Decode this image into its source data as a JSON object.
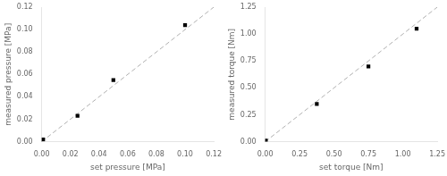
{
  "chart_data": [
    {
      "type": "scatter",
      "xlabel": "set pressure [MPa]",
      "ylabel": "measured pressure [MPa]",
      "xlim": [
        0.0,
        0.12
      ],
      "ylim": [
        0.0,
        0.12
      ],
      "xticks": [
        {
          "value": 0.0,
          "label": "0.00"
        },
        0.02,
        0.04,
        0.06,
        0.08,
        {
          "value": 0.1,
          "label": "0.10"
        },
        0.12
      ],
      "yticks": [
        {
          "value": 0.0,
          "label": "0.00"
        },
        0.02,
        0.04,
        0.06,
        0.08,
        {
          "value": 0.1,
          "label": "0.10"
        },
        0.12
      ],
      "grid": false,
      "series": [
        {
          "type": "line",
          "color": "#b0b0b0",
          "line_style": "dashed",
          "x": [
            0.0,
            0.12
          ],
          "values": [
            0.0,
            0.12
          ]
        },
        {
          "type": "scatter",
          "color": "#000000",
          "marker": "square",
          "x": [
            0.001,
            0.025,
            0.05,
            0.1
          ],
          "values": [
            0.002,
            0.023,
            0.055,
            0.104
          ]
        }
      ]
    },
    {
      "type": "scatter",
      "xlabel": "set torque [Nm]",
      "ylabel": "measured torque [Nm]",
      "xlim": [
        0.0,
        1.25
      ],
      "ylim": [
        0.0,
        1.25
      ],
      "xticks": [
        {
          "value": 0.0,
          "label": "0.00"
        },
        0.25,
        {
          "value": 0.5,
          "label": "0.50"
        },
        0.75,
        {
          "value": 1.0,
          "label": "1.00"
        },
        1.25
      ],
      "yticks": [
        {
          "value": 0.0,
          "label": "0.00"
        },
        0.25,
        {
          "value": 0.5,
          "label": "0.50"
        },
        0.75,
        {
          "value": 1.0,
          "label": "1.00"
        },
        1.25
      ],
      "grid": false,
      "series": [
        {
          "type": "line",
          "color": "#b0b0b0",
          "line_style": "dashed",
          "x": [
            0.0,
            1.25
          ],
          "values": [
            0.0,
            1.25
          ]
        },
        {
          "type": "scatter",
          "color": "#000000",
          "marker": "square",
          "x": [
            0.005,
            0.375,
            0.75,
            1.1
          ],
          "values": [
            0.01,
            0.35,
            0.7,
            1.05
          ]
        }
      ]
    }
  ]
}
